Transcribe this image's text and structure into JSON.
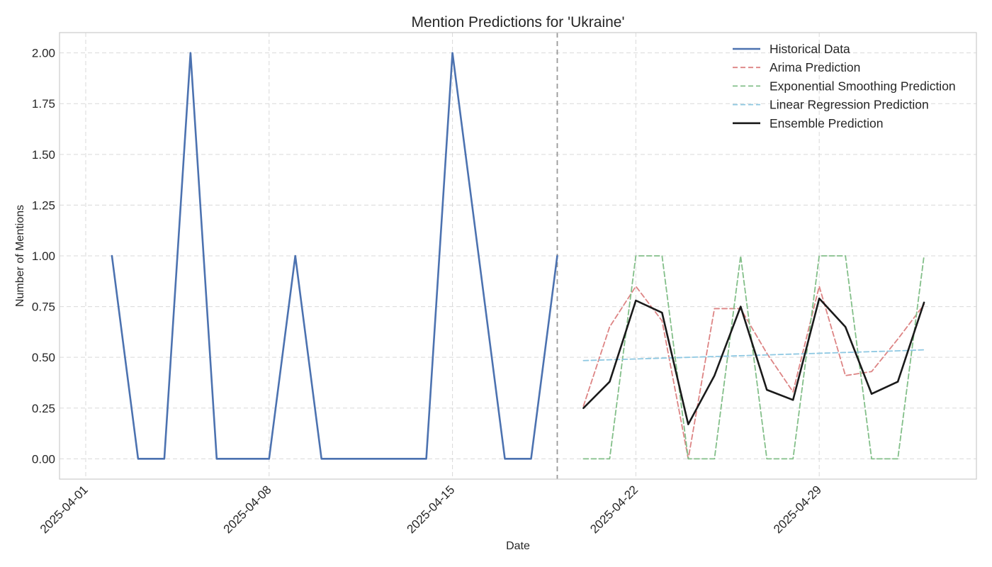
{
  "chart_data": {
    "type": "line",
    "title": "Mention Predictions for 'Ukraine'",
    "xlabel": "Date",
    "ylabel": "Number of Mentions",
    "xlim": [
      "2025-03-31",
      "2025-05-05"
    ],
    "ylim": [
      -0.1,
      2.1
    ],
    "x_ticks": [
      "2025-04-01",
      "2025-04-08",
      "2025-04-15",
      "2025-04-22",
      "2025-04-29"
    ],
    "y_ticks": [
      "0.00",
      "0.25",
      "0.50",
      "0.75",
      "1.00",
      "1.25",
      "1.50",
      "1.75",
      "2.00"
    ],
    "y_tick_values": [
      0,
      0.25,
      0.5,
      0.75,
      1.0,
      1.25,
      1.5,
      1.75,
      2.0
    ],
    "grid": true,
    "legend_position": "top-right",
    "forecast_start_marker": "2025-04-19",
    "series": [
      {
        "name": "Historical Data",
        "style": "solid",
        "color": "#4c72b0",
        "x": [
          "2025-04-02",
          "2025-04-03",
          "2025-04-04",
          "2025-04-05",
          "2025-04-06",
          "2025-04-07",
          "2025-04-08",
          "2025-04-09",
          "2025-04-10",
          "2025-04-11",
          "2025-04-12",
          "2025-04-13",
          "2025-04-14",
          "2025-04-15",
          "2025-04-16",
          "2025-04-17",
          "2025-04-18",
          "2025-04-19"
        ],
        "values": [
          1,
          0,
          0,
          2,
          0,
          0,
          0,
          1,
          0,
          0,
          0,
          0,
          0,
          2,
          1,
          0,
          0,
          1
        ]
      },
      {
        "name": "Arima Prediction",
        "style": "dashed",
        "color": "#dd8484",
        "x": [
          "2025-04-20",
          "2025-04-21",
          "2025-04-22",
          "2025-04-23",
          "2025-04-24",
          "2025-04-25",
          "2025-04-26",
          "2025-04-27",
          "2025-04-28",
          "2025-04-29",
          "2025-04-30",
          "2025-05-01",
          "2025-05-02",
          "2025-05-03"
        ],
        "values": [
          0.26,
          0.65,
          0.85,
          0.68,
          0.0,
          0.74,
          0.74,
          0.52,
          0.33,
          0.85,
          0.41,
          0.43,
          0.59,
          0.76
        ]
      },
      {
        "name": "Exponential Smoothing Prediction",
        "style": "dashed",
        "color": "#83bf89",
        "x": [
          "2025-04-20",
          "2025-04-21",
          "2025-04-22",
          "2025-04-23",
          "2025-04-24",
          "2025-04-25",
          "2025-04-26",
          "2025-04-27",
          "2025-04-28",
          "2025-04-29",
          "2025-04-30",
          "2025-05-01",
          "2025-05-02",
          "2025-05-03"
        ],
        "values": [
          0,
          0,
          1,
          1,
          0,
          0,
          1,
          0,
          0,
          1,
          1,
          0,
          0,
          1
        ]
      },
      {
        "name": "Linear Regression Prediction",
        "style": "dashed",
        "color": "#8ec8e2",
        "x": [
          "2025-04-20",
          "2025-04-21",
          "2025-04-22",
          "2025-04-23",
          "2025-04-24",
          "2025-04-25",
          "2025-04-26",
          "2025-04-27",
          "2025-04-28",
          "2025-04-29",
          "2025-04-30",
          "2025-05-01",
          "2025-05-02",
          "2025-05-03"
        ],
        "values": [
          0.484,
          0.488,
          0.492,
          0.496,
          0.5,
          0.504,
          0.508,
          0.512,
          0.516,
          0.52,
          0.524,
          0.528,
          0.532,
          0.537
        ]
      },
      {
        "name": "Ensemble Prediction",
        "style": "solid",
        "color": "#1a1a1a",
        "x": [
          "2025-04-20",
          "2025-04-21",
          "2025-04-22",
          "2025-04-23",
          "2025-04-24",
          "2025-04-25",
          "2025-04-26",
          "2025-04-27",
          "2025-04-28",
          "2025-04-29",
          "2025-04-30",
          "2025-05-01",
          "2025-05-02",
          "2025-05-03"
        ],
        "values": [
          0.25,
          0.38,
          0.78,
          0.72,
          0.17,
          0.41,
          0.75,
          0.34,
          0.29,
          0.79,
          0.65,
          0.32,
          0.38,
          0.77
        ]
      }
    ]
  }
}
